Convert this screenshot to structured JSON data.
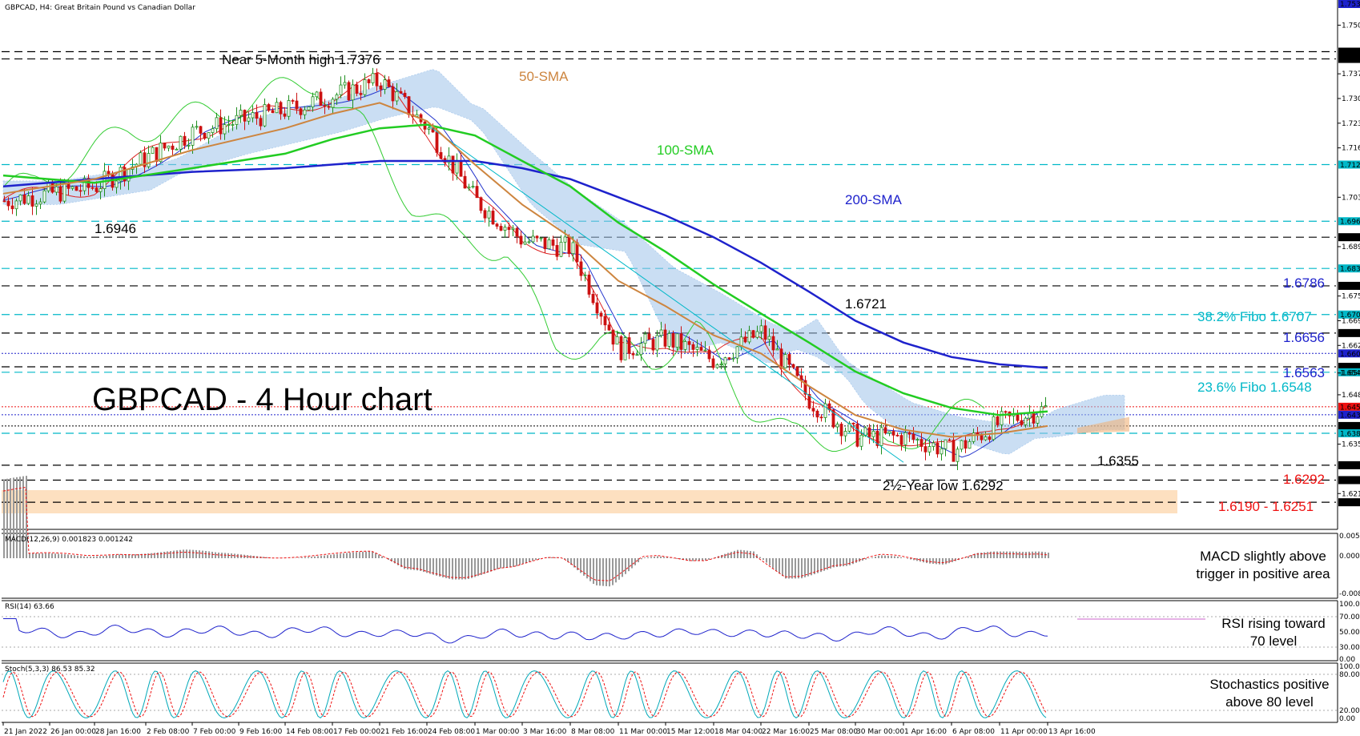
{
  "header": {
    "symbol_label": "GBPCAD, H4:  Great Britain Pound vs Canadian Dollar"
  },
  "big_title": "GBPCAD - 4 Hour chart",
  "colors": {
    "sma50": "#cd853f",
    "sma100": "#22cc22",
    "sma200": "#1e22cc",
    "candle_up": "#1f8f1f",
    "candle_down": "#cc1111",
    "cloud": "#9fc3ea",
    "cloud_bear": "#f0b27a",
    "fibo": "#00b8c8",
    "red_level": "#ee1111",
    "zone": "#fde0c0"
  },
  "annotations": {
    "high": "Near 5-Month high 1.7376",
    "sma50": "50-SMA",
    "sma100": "100-SMA",
    "sma200": "200-SMA",
    "low_1_6946": "1.6946",
    "peak_1_6721": "1.6721",
    "lvl_1_6786": "1.6786",
    "fibo382": "38.2% Fibo 1.6707",
    "lvl_1_6656": "1.6656",
    "lvl_1_6563": "1.6563",
    "fibo236": "23.6% Fibo 1.6548",
    "low_1_6355": "1.6355",
    "year_low": "2½-Year low 1.6292",
    "lvl_1_6292": "1.6292",
    "zone": "1.6190 - 1.6251"
  },
  "price_axis": {
    "ticks": [
      "1.75040",
      "1.74310",
      "1.74110",
      "1.73700",
      "1.73020",
      "1.72340",
      "1.71660",
      "1.71200",
      "1.70300",
      "1.69640",
      "1.69200",
      "1.68940",
      "1.68340",
      "1.67860",
      "1.67580",
      "1.67070",
      "1.66900",
      "1.66560",
      "1.66220",
      "1.66000",
      "1.65630",
      "1.65460",
      "1.64860",
      "1.64530",
      "1.64310",
      "1.64000",
      "1.63800",
      "1.63500",
      "1.62920",
      "1.62510",
      "1.62140",
      "1.61900"
    ],
    "top_badge": "1.75330"
  },
  "macd": {
    "label": "MACD(12,26,9) 0.001823 0.001242",
    "ticks": [
      "0.005441",
      "0.000000",
      "-0.008271"
    ],
    "note_line1": "MACD slightly above",
    "note_line2": "trigger in positive area"
  },
  "rsi": {
    "label": "RSI(14) 63.66",
    "ticks": [
      "100.00",
      "70.00",
      "50.00",
      "30.00",
      "0.00"
    ],
    "note_line1": "RSI rising toward",
    "note_line2": "70 level"
  },
  "stoch": {
    "label": "Stoch(5,3,3) 86.53 85.32",
    "ticks": [
      "100.00",
      "80.00",
      "20.00",
      "0.00"
    ],
    "note_line1": "Stochastics positive",
    "note_line2": "above 80 level"
  },
  "time_axis": [
    "21 Jan 2022",
    "26 Jan 00:00",
    "28 Jan 16:00",
    "2 Feb 08:00",
    "7 Feb 00:00",
    "9 Feb 16:00",
    "14 Feb 08:00",
    "17 Feb 00:00",
    "21 Feb 16:00",
    "24 Feb 08:00",
    "1 Mar 00:00",
    "3 Mar 16:00",
    "8 Mar 08:00",
    "11 Mar 00:00",
    "15 Mar 12:00",
    "18 Mar 04:00",
    "22 Mar 16:00",
    "25 Mar 08:00",
    "30 Mar 00:00",
    "1 Apr 16:00",
    "6 Apr 08:00",
    "11 Apr 00:00",
    "13 Apr 16:00"
  ],
  "chart_data": {
    "type": "line",
    "title": "GBPCAD, H4:  Great Britain Pound vs Canadian Dollar",
    "y_range": [
      1.6155,
      1.7538
    ],
    "horizontal_levels": [
      {
        "value": 1.7431,
        "style": "black-dash"
      },
      {
        "value": 1.7411,
        "style": "black-dash"
      },
      {
        "value": 1.712,
        "style": "cyan-dash"
      },
      {
        "value": 1.6964,
        "style": "cyan-dash"
      },
      {
        "value": 1.692,
        "style": "black-dash"
      },
      {
        "value": 1.6834,
        "style": "cyan-dash"
      },
      {
        "value": 1.6786,
        "style": "black-dash"
      },
      {
        "value": 1.6707,
        "style": "cyan-dash"
      },
      {
        "value": 1.6656,
        "style": "black-dash"
      },
      {
        "value": 1.66,
        "style": "blue-dot"
      },
      {
        "value": 1.6563,
        "style": "black-dash"
      },
      {
        "value": 1.6548,
        "style": "cyan-dash"
      },
      {
        "value": 1.6453,
        "style": "red-dot"
      },
      {
        "value": 1.6431,
        "style": "blue-dot"
      },
      {
        "value": 1.64,
        "style": "black-dot"
      },
      {
        "value": 1.638,
        "style": "cyan-dash"
      },
      {
        "value": 1.6292,
        "style": "black-dash"
      },
      {
        "value": 1.6251,
        "style": "black-dash"
      },
      {
        "value": 1.619,
        "style": "black-dash"
      }
    ],
    "close_path_times": [
      "21 Jan 2022",
      "28 Jan 16:00",
      "7 Feb 00:00",
      "14 Feb 08:00",
      "17 Feb 00:00",
      "21 Feb 16:00",
      "24 Feb 08:00",
      "1 Mar 00:00",
      "3 Mar 16:00",
      "8 Mar 08:00",
      "11 Mar 00:00",
      "15 Mar 12:00",
      "18 Mar 04:00",
      "22 Mar 16:00",
      "25 Mar 08:00",
      "30 Mar 00:00",
      "1 Apr 16:00",
      "6 Apr 08:00",
      "11 Apr 00:00",
      "13 Apr 16:00"
    ],
    "close": [
      1.702,
      1.706,
      1.721,
      1.727,
      1.731,
      1.735,
      1.722,
      1.702,
      1.691,
      1.689,
      1.661,
      1.664,
      1.658,
      1.666,
      1.647,
      1.637,
      1.637,
      1.633,
      1.641,
      1.645
    ],
    "series": [
      {
        "name": "50-SMA",
        "values": [
          1.704,
          1.708,
          1.716,
          1.722,
          1.726,
          1.729,
          1.724,
          1.712,
          1.701,
          1.692,
          1.68,
          1.673,
          1.665,
          1.66,
          1.651,
          1.643,
          1.639,
          1.637,
          1.638,
          1.64
        ]
      },
      {
        "name": "100-SMA",
        "values": [
          1.709,
          1.707,
          1.711,
          1.715,
          1.719,
          1.722,
          1.723,
          1.72,
          1.713,
          1.706,
          1.696,
          1.688,
          1.679,
          1.671,
          1.663,
          1.655,
          1.649,
          1.645,
          1.643,
          1.644
        ]
      },
      {
        "name": "200-SMA",
        "values": [
          1.706,
          1.708,
          1.71,
          1.711,
          1.712,
          1.713,
          1.713,
          1.713,
          1.711,
          1.708,
          1.703,
          1.698,
          1.692,
          1.685,
          1.677,
          1.669,
          1.663,
          1.659,
          1.657,
          1.656
        ]
      }
    ]
  }
}
